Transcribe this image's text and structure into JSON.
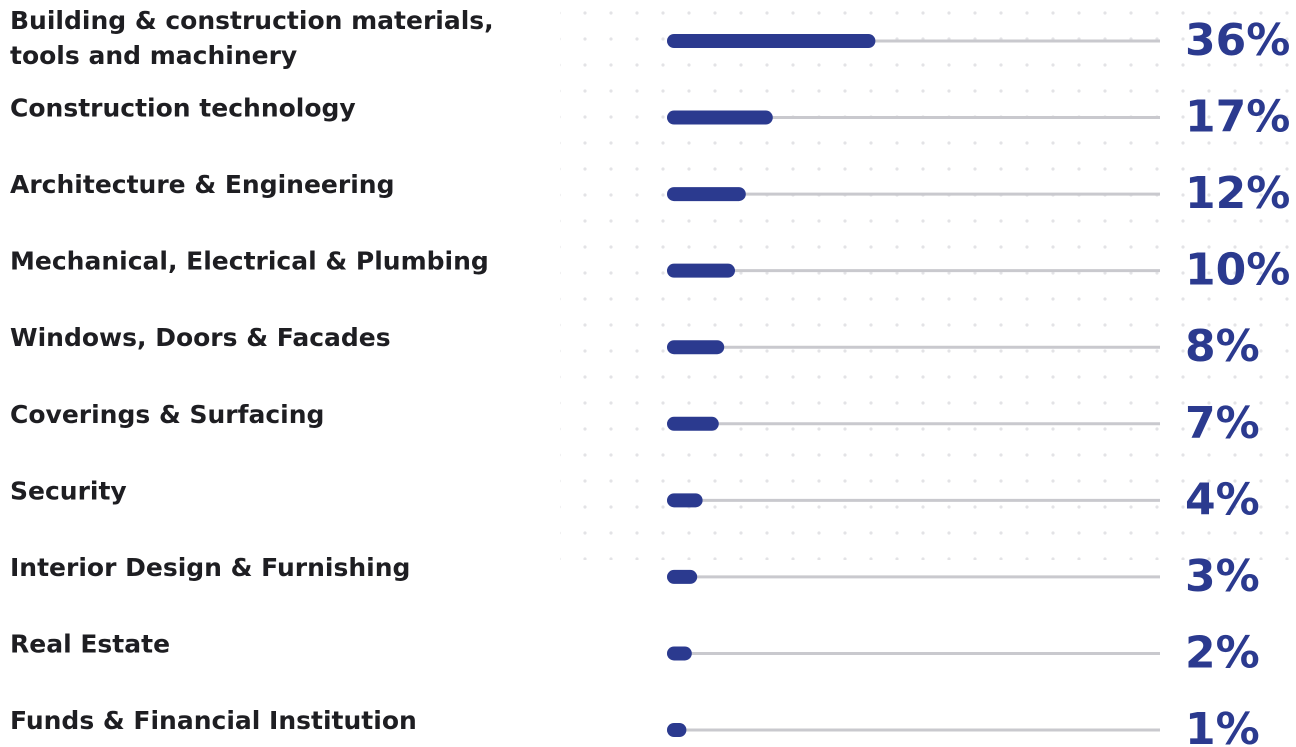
{
  "chart_data": {
    "type": "bar",
    "orientation": "horizontal",
    "categories": [
      "Building & construction materials,\ntools and machinery",
      "Construction technology",
      "Architecture & Engineering",
      "Mechanical, Electrical & Plumbing",
      "Windows, Doors & Facades",
      "Coverings & Surfacing",
      "Security",
      "Interior Design & Furnishing",
      "Real Estate",
      "Funds & Financial Institution"
    ],
    "values": [
      36,
      17,
      12,
      10,
      8,
      7,
      4,
      3,
      2,
      1
    ],
    "value_labels": [
      "36%",
      "17%",
      "12%",
      "10%",
      "8%",
      "7%",
      "4%",
      "3%",
      "2%",
      "1%"
    ],
    "color": "#2b3a8f",
    "track_color": "#c9c9ce",
    "xlim": [
      0,
      90
    ]
  }
}
